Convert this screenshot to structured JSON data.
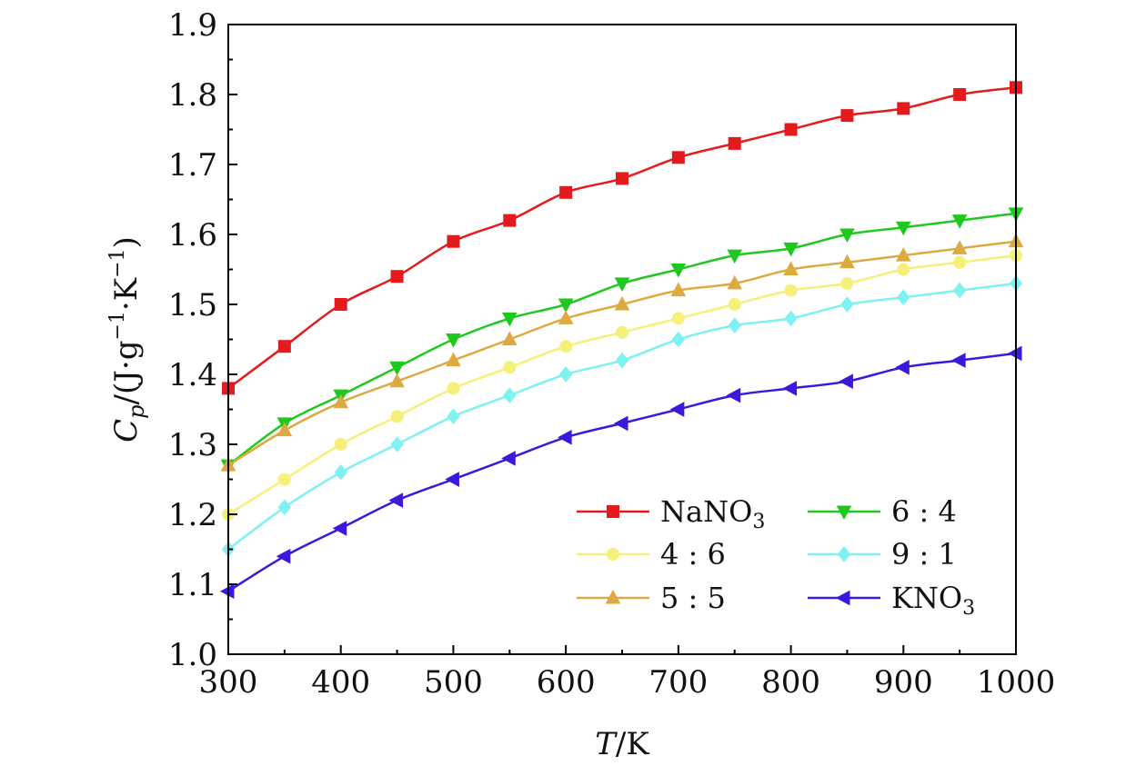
{
  "chart_data": {
    "type": "line",
    "xlabel": "T/K",
    "ylabel": "Cp/(J·g−1·K−1)",
    "xlim": [
      300,
      1000
    ],
    "ylim": [
      1.0,
      1.9
    ],
    "xticks": [
      "300",
      "400",
      "500",
      "600",
      "700",
      "800",
      "900",
      "1000"
    ],
    "yticks": [
      "1.0",
      "1.1",
      "1.2",
      "1.3",
      "1.4",
      "1.5",
      "1.6",
      "1.7",
      "1.8",
      "1.9"
    ],
    "grid": false,
    "legend_position": "lower-right",
    "x": [
      300,
      350,
      400,
      450,
      500,
      550,
      600,
      650,
      700,
      750,
      800,
      850,
      900,
      950,
      1000
    ],
    "series": [
      {
        "name": "NaNO3",
        "color": "#e41a1c",
        "marker": "square",
        "values": [
          1.38,
          1.44,
          1.5,
          1.54,
          1.59,
          1.62,
          1.66,
          1.68,
          1.71,
          1.73,
          1.75,
          1.77,
          1.78,
          1.8,
          1.81
        ]
      },
      {
        "name": "6 : 4",
        "color": "#1ec81e",
        "marker": "triangle-down",
        "values": [
          1.27,
          1.33,
          1.37,
          1.41,
          1.45,
          1.48,
          1.5,
          1.53,
          1.55,
          1.57,
          1.58,
          1.6,
          1.61,
          1.62,
          1.63
        ]
      },
      {
        "name": "4 : 6",
        "color": "#f5f07a",
        "marker": "circle",
        "values": [
          1.2,
          1.25,
          1.3,
          1.34,
          1.38,
          1.41,
          1.44,
          1.46,
          1.48,
          1.5,
          1.52,
          1.53,
          1.55,
          1.56,
          1.57
        ]
      },
      {
        "name": "9 : 1",
        "color": "#7ef1f1",
        "marker": "diamond",
        "values": [
          1.15,
          1.21,
          1.26,
          1.3,
          1.34,
          1.37,
          1.4,
          1.42,
          1.45,
          1.47,
          1.48,
          1.5,
          1.51,
          1.52,
          1.53
        ]
      },
      {
        "name": "5 : 5",
        "color": "#dcaa41",
        "marker": "triangle-up",
        "values": [
          1.27,
          1.32,
          1.36,
          1.39,
          1.42,
          1.45,
          1.48,
          1.5,
          1.52,
          1.53,
          1.55,
          1.56,
          1.57,
          1.58,
          1.59
        ]
      },
      {
        "name": "KNO3",
        "color": "#3d18dc",
        "marker": "triangle-left",
        "values": [
          1.09,
          1.14,
          1.18,
          1.22,
          1.25,
          1.28,
          1.31,
          1.33,
          1.35,
          1.37,
          1.38,
          1.39,
          1.41,
          1.42,
          1.43
        ]
      }
    ]
  }
}
